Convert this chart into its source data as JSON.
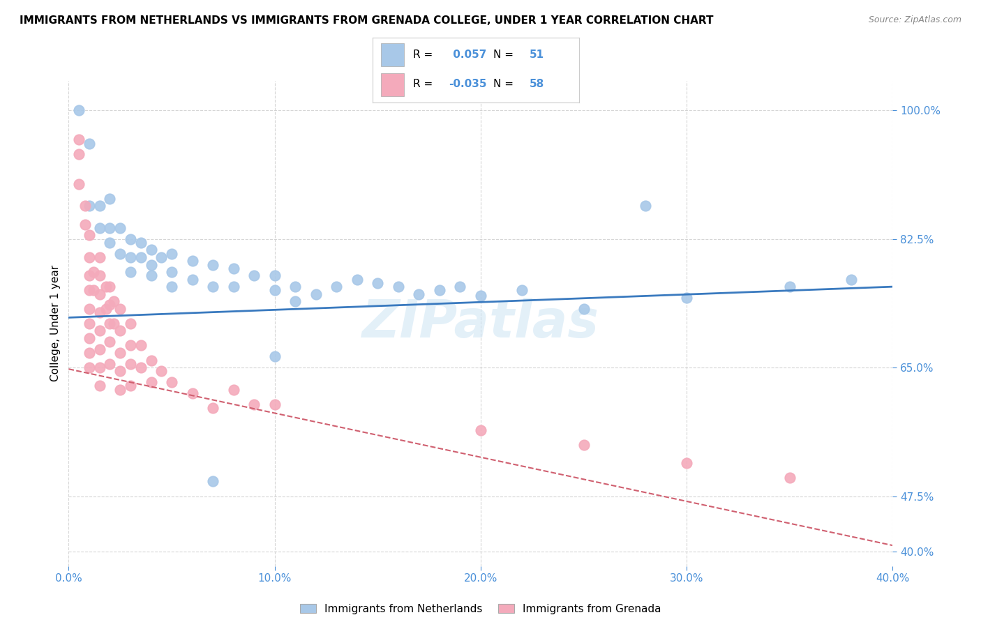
{
  "title": "IMMIGRANTS FROM NETHERLANDS VS IMMIGRANTS FROM GRENADA COLLEGE, UNDER 1 YEAR CORRELATION CHART",
  "source": "Source: ZipAtlas.com",
  "ylabel": "College, Under 1 year",
  "xlim": [
    0.0,
    0.4
  ],
  "ylim": [
    0.38,
    1.04
  ],
  "ytick_positions": [
    0.4,
    0.475,
    0.65,
    0.825,
    1.0
  ],
  "ytick_labels": [
    "40.0%",
    "47.5%",
    "65.0%",
    "82.5%",
    "100.0%"
  ],
  "xtick_positions": [
    0.0,
    0.1,
    0.2,
    0.3,
    0.4
  ],
  "xtick_labels": [
    "0.0%",
    "10.0%",
    "20.0%",
    "30.0%",
    "40.0%"
  ],
  "r_netherlands": 0.057,
  "n_netherlands": 51,
  "r_grenada": -0.035,
  "n_grenada": 58,
  "color_netherlands": "#a8c8e8",
  "color_grenada": "#f4aabb",
  "line_color_netherlands": "#3a7abf",
  "line_color_grenada": "#d06070",
  "watermark": "ZIPatlas",
  "netherlands_line": [
    0.0,
    0.4,
    0.718,
    0.76
  ],
  "grenada_line": [
    0.0,
    0.4,
    0.648,
    0.408
  ],
  "netherlands_points": [
    [
      0.005,
      1.0
    ],
    [
      0.01,
      0.955
    ],
    [
      0.01,
      0.87
    ],
    [
      0.015,
      0.87
    ],
    [
      0.015,
      0.84
    ],
    [
      0.02,
      0.88
    ],
    [
      0.02,
      0.84
    ],
    [
      0.02,
      0.82
    ],
    [
      0.025,
      0.84
    ],
    [
      0.025,
      0.805
    ],
    [
      0.03,
      0.825
    ],
    [
      0.03,
      0.8
    ],
    [
      0.03,
      0.78
    ],
    [
      0.035,
      0.82
    ],
    [
      0.035,
      0.8
    ],
    [
      0.04,
      0.81
    ],
    [
      0.04,
      0.79
    ],
    [
      0.04,
      0.775
    ],
    [
      0.045,
      0.8
    ],
    [
      0.05,
      0.805
    ],
    [
      0.05,
      0.78
    ],
    [
      0.05,
      0.76
    ],
    [
      0.06,
      0.795
    ],
    [
      0.06,
      0.77
    ],
    [
      0.07,
      0.79
    ],
    [
      0.07,
      0.76
    ],
    [
      0.08,
      0.785
    ],
    [
      0.08,
      0.76
    ],
    [
      0.09,
      0.775
    ],
    [
      0.1,
      0.775
    ],
    [
      0.1,
      0.755
    ],
    [
      0.1,
      0.665
    ],
    [
      0.11,
      0.76
    ],
    [
      0.11,
      0.74
    ],
    [
      0.12,
      0.75
    ],
    [
      0.13,
      0.76
    ],
    [
      0.14,
      0.77
    ],
    [
      0.15,
      0.765
    ],
    [
      0.16,
      0.76
    ],
    [
      0.17,
      0.75
    ],
    [
      0.18,
      0.755
    ],
    [
      0.19,
      0.76
    ],
    [
      0.2,
      0.748
    ],
    [
      0.22,
      0.755
    ],
    [
      0.25,
      0.73
    ],
    [
      0.28,
      0.87
    ],
    [
      0.3,
      0.745
    ],
    [
      0.35,
      0.76
    ],
    [
      0.38,
      0.77
    ],
    [
      0.07,
      0.495
    ]
  ],
  "grenada_points": [
    [
      0.005,
      0.96
    ],
    [
      0.005,
      0.94
    ],
    [
      0.005,
      0.9
    ],
    [
      0.008,
      0.87
    ],
    [
      0.008,
      0.845
    ],
    [
      0.01,
      0.83
    ],
    [
      0.01,
      0.8
    ],
    [
      0.01,
      0.775
    ],
    [
      0.01,
      0.755
    ],
    [
      0.01,
      0.73
    ],
    [
      0.01,
      0.71
    ],
    [
      0.01,
      0.69
    ],
    [
      0.01,
      0.67
    ],
    [
      0.01,
      0.65
    ],
    [
      0.012,
      0.78
    ],
    [
      0.012,
      0.755
    ],
    [
      0.015,
      0.8
    ],
    [
      0.015,
      0.775
    ],
    [
      0.015,
      0.75
    ],
    [
      0.015,
      0.725
    ],
    [
      0.015,
      0.7
    ],
    [
      0.015,
      0.675
    ],
    [
      0.015,
      0.65
    ],
    [
      0.015,
      0.625
    ],
    [
      0.018,
      0.76
    ],
    [
      0.018,
      0.73
    ],
    [
      0.02,
      0.76
    ],
    [
      0.02,
      0.735
    ],
    [
      0.02,
      0.71
    ],
    [
      0.02,
      0.685
    ],
    [
      0.02,
      0.655
    ],
    [
      0.022,
      0.74
    ],
    [
      0.022,
      0.71
    ],
    [
      0.025,
      0.73
    ],
    [
      0.025,
      0.7
    ],
    [
      0.025,
      0.67
    ],
    [
      0.025,
      0.645
    ],
    [
      0.025,
      0.62
    ],
    [
      0.03,
      0.71
    ],
    [
      0.03,
      0.68
    ],
    [
      0.03,
      0.655
    ],
    [
      0.03,
      0.625
    ],
    [
      0.035,
      0.68
    ],
    [
      0.035,
      0.65
    ],
    [
      0.04,
      0.66
    ],
    [
      0.04,
      0.63
    ],
    [
      0.045,
      0.645
    ],
    [
      0.05,
      0.63
    ],
    [
      0.06,
      0.615
    ],
    [
      0.07,
      0.595
    ],
    [
      0.08,
      0.62
    ],
    [
      0.09,
      0.6
    ],
    [
      0.1,
      0.6
    ],
    [
      0.2,
      0.565
    ],
    [
      0.25,
      0.545
    ],
    [
      0.3,
      0.52
    ],
    [
      0.35,
      0.5
    ]
  ]
}
